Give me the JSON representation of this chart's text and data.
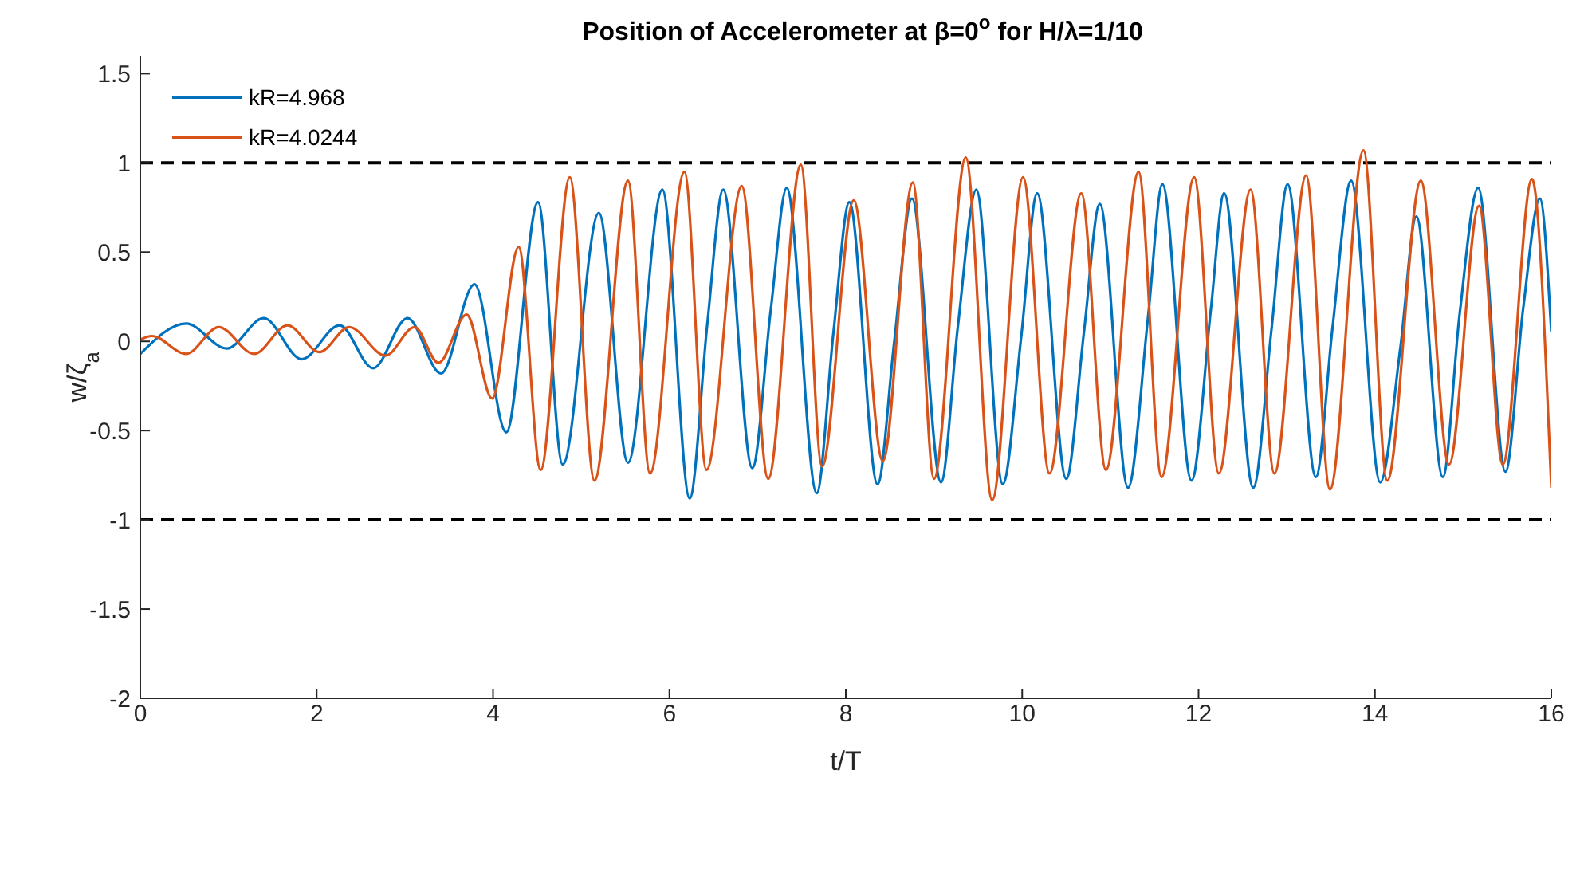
{
  "chart_data": {
    "type": "line",
    "title": "Position of Accelerometer at β=0$^{o}$ for H/λ=1/10",
    "xlabel": "t/T",
    "ylabel": "w/ζ$_{a}$",
    "xlim": [
      0,
      16
    ],
    "xticks": [
      0,
      2,
      4,
      6,
      8,
      10,
      12,
      14,
      16
    ],
    "ylim": [
      -2,
      1.6
    ],
    "yticks": [
      -2,
      -1.5,
      -1,
      -0.5,
      0,
      0.5,
      1,
      1.5
    ],
    "grid": false,
    "legend": "top left",
    "marker": "none",
    "line_style": "solid",
    "ref_lines": [
      {
        "axis": "y",
        "value": 1,
        "color": "#000000",
        "line_style": "dashed"
      },
      {
        "axis": "y",
        "value": -1,
        "color": "#000000",
        "line_style": "dashed"
      }
    ],
    "series": [
      {
        "name": "kR=4.968",
        "color": "#0072bd",
        "x": [
          0,
          0.52,
          0.98,
          1.4,
          1.83,
          2.26,
          2.64,
          3.03,
          3.41,
          3.79,
          4.15,
          4.51,
          4.79,
          5.2,
          5.53,
          5.92,
          6.23,
          6.43,
          6.61,
          6.94,
          7.15,
          7.33,
          7.67,
          7.86,
          8.04,
          8.36,
          8.55,
          8.75,
          9.08,
          9.27,
          9.48,
          9.78,
          9.99,
          10.17,
          10.5,
          10.7,
          10.88,
          11.2,
          11.43,
          11.59,
          11.92,
          12.14,
          12.29,
          12.62,
          12.83,
          13.01,
          13.33,
          13.52,
          13.73,
          14.06,
          14.29,
          14.47,
          14.77,
          14.96,
          15.17,
          15.48,
          15.68,
          15.87,
          16
        ],
        "values": [
          -0.07,
          0.1,
          -0.04,
          0.13,
          -0.1,
          0.09,
          -0.15,
          0.13,
          -0.18,
          0.32,
          -0.51,
          0.78,
          -0.69,
          0.72,
          -0.68,
          0.85,
          -0.88,
          0.1,
          0.85,
          -0.71,
          0.18,
          0.86,
          -0.85,
          0.05,
          0.78,
          -0.8,
          0.0,
          0.8,
          -0.79,
          0.08,
          0.85,
          -0.8,
          0.03,
          0.83,
          -0.77,
          0.05,
          0.77,
          -0.82,
          0.15,
          0.88,
          -0.78,
          0.18,
          0.83,
          -0.82,
          0.08,
          0.88,
          -0.76,
          0.08,
          0.9,
          -0.79,
          -0.03,
          0.7,
          -0.76,
          0.15,
          0.86,
          -0.73,
          0.18,
          0.8,
          0.05
        ]
      },
      {
        "name": "kR=4.0244",
        "color": "#d95319",
        "x": [
          0,
          0.13,
          0.52,
          0.89,
          1.29,
          1.67,
          2.03,
          2.37,
          2.78,
          3.11,
          3.38,
          3.7,
          3.99,
          4.29,
          4.54,
          4.87,
          5.15,
          5.53,
          5.78,
          6.17,
          6.42,
          6.82,
          7.12,
          7.49,
          7.73,
          8.09,
          8.42,
          8.76,
          9.0,
          9.36,
          9.66,
          10.01,
          10.31,
          10.67,
          10.95,
          11.32,
          11.58,
          11.95,
          12.23,
          12.59,
          12.86,
          13.22,
          13.49,
          13.87,
          14.14,
          14.52,
          14.84,
          15.18,
          15.45,
          15.78,
          16
        ],
        "values": [
          0.01,
          0.03,
          -0.07,
          0.08,
          -0.07,
          0.09,
          -0.06,
          0.08,
          -0.08,
          0.08,
          -0.12,
          0.15,
          -0.32,
          0.53,
          -0.72,
          0.92,
          -0.78,
          0.9,
          -0.74,
          0.95,
          -0.72,
          0.87,
          -0.77,
          0.99,
          -0.7,
          0.79,
          -0.67,
          0.89,
          -0.77,
          1.03,
          -0.89,
          0.92,
          -0.74,
          0.83,
          -0.72,
          0.95,
          -0.76,
          0.92,
          -0.74,
          0.85,
          -0.74,
          0.93,
          -0.83,
          1.07,
          -0.78,
          0.9,
          -0.69,
          0.76,
          -0.69,
          0.91,
          -0.82
        ]
      }
    ]
  }
}
